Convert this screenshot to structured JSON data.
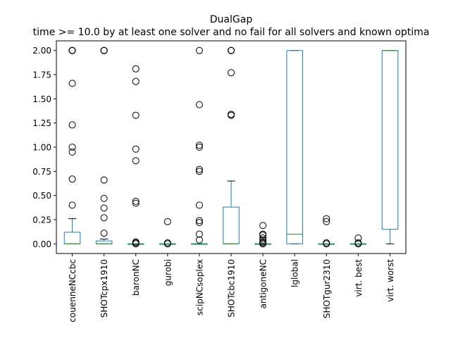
{
  "chart_data": {
    "type": "box",
    "title": "DualGap",
    "subtitle": "time >= 10.0 by at least one solver and no fail for all solvers and known optima",
    "xlabel": "",
    "ylabel": "",
    "ylim": [
      -0.1,
      2.1
    ],
    "yticks": [
      "0.00",
      "0.25",
      "0.50",
      "0.75",
      "1.00",
      "1.25",
      "1.50",
      "1.75",
      "2.00"
    ],
    "grid": false,
    "colors": {
      "box": "#1f77b4",
      "median": "#2ca02c",
      "whisker": "#1f77b4",
      "flier": "#000000"
    },
    "categories": [
      "couenneNCcbc",
      "SHOTcpx1910",
      "baronNC",
      "gurobi",
      "scipNCsoplex",
      "SHOTcbc1910",
      "antigoneNC",
      "lglobal",
      "SHOTgur2310",
      "virt. best",
      "virt. worst"
    ],
    "boxes": [
      {
        "name": "couenneNCcbc",
        "q1": 0.0,
        "median": 0.0,
        "q3": 0.12,
        "whislo": 0.0,
        "whishi": 0.26,
        "fliers": [
          0.4,
          0.67,
          0.95,
          1.0,
          1.23,
          1.66,
          2.0,
          2.0,
          2.0,
          2.0
        ]
      },
      {
        "name": "SHOTcpx1910",
        "q1": 0.0,
        "median": 0.0,
        "q3": 0.03,
        "whislo": 0.0,
        "whishi": 0.05,
        "fliers": [
          0.11,
          0.27,
          0.37,
          0.47,
          0.66,
          2.0,
          2.0,
          2.0,
          2.0
        ]
      },
      {
        "name": "baronNC",
        "q1": 0.0,
        "median": 0.0,
        "q3": 0.0,
        "whislo": 0.0,
        "whishi": 0.0,
        "fliers": [
          0.0,
          0.01,
          0.02,
          0.42,
          0.44,
          0.86,
          0.98,
          1.33,
          1.68,
          1.81
        ]
      },
      {
        "name": "gurobi",
        "q1": 0.0,
        "median": 0.0,
        "q3": 0.0,
        "whislo": 0.0,
        "whishi": 0.0,
        "fliers": [
          0.0,
          0.01,
          0.23
        ]
      },
      {
        "name": "scipNCsoplex",
        "q1": 0.0,
        "median": 0.0,
        "q3": 0.0,
        "whislo": 0.0,
        "whishi": 0.0,
        "fliers": [
          0.04,
          0.1,
          0.22,
          0.24,
          0.4,
          0.75,
          0.77,
          1.0,
          1.02,
          1.44,
          2.0
        ]
      },
      {
        "name": "SHOTcbc1910",
        "q1": 0.0,
        "median": 0.0,
        "q3": 0.38,
        "whislo": 0.0,
        "whishi": 0.65,
        "fliers": [
          1.33,
          1.34,
          1.77,
          2.0,
          2.0,
          2.0,
          2.0
        ]
      },
      {
        "name": "antigoneNC",
        "q1": 0.0,
        "median": 0.0,
        "q3": 0.0,
        "whislo": 0.0,
        "whishi": 0.0,
        "fliers": [
          0.0,
          0.01,
          0.02,
          0.04,
          0.06,
          0.09,
          0.1,
          0.19
        ]
      },
      {
        "name": "lglobal",
        "q1": 0.0,
        "median": 0.1,
        "q3": 2.0,
        "whislo": 0.0,
        "whishi": 2.0,
        "fliers": []
      },
      {
        "name": "SHOTgur2310",
        "q1": 0.0,
        "median": 0.0,
        "q3": 0.0,
        "whislo": 0.0,
        "whishi": 0.0,
        "fliers": [
          0.0,
          0.01,
          0.23,
          0.26
        ]
      },
      {
        "name": "virt. best",
        "q1": 0.0,
        "median": 0.0,
        "q3": 0.0,
        "whislo": 0.0,
        "whishi": 0.0,
        "fliers": [
          0.0,
          0.01,
          0.06
        ]
      },
      {
        "name": "virt. worst",
        "q1": 0.15,
        "median": 2.0,
        "q3": 2.0,
        "whislo": 0.0,
        "whishi": 2.0,
        "fliers": []
      }
    ]
  }
}
